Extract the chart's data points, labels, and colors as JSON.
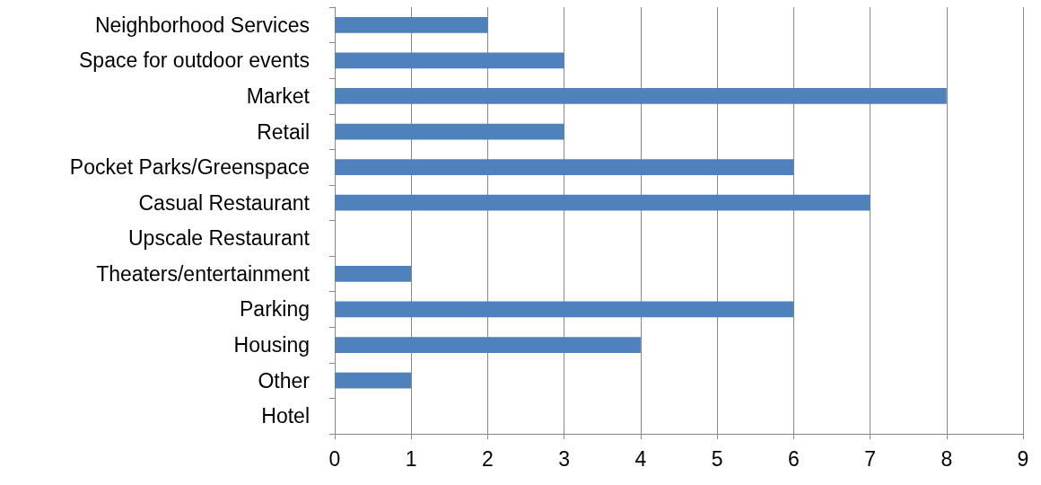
{
  "chart_data": {
    "type": "bar",
    "orientation": "horizontal",
    "categories": [
      "Neighborhood Services",
      "Space for outdoor events",
      "Market",
      "Retail",
      "Pocket Parks/Greenspace",
      "Casual Restaurant",
      "Upscale Restaurant",
      "Theaters/entertainment",
      "Parking",
      "Housing",
      "Other",
      "Hotel"
    ],
    "values": [
      2,
      3,
      8,
      3,
      6,
      7,
      0,
      1,
      6,
      4,
      1,
      0
    ],
    "color": "#4f81bd",
    "xlim": [
      0,
      9
    ],
    "xticks": [
      0,
      1,
      2,
      3,
      4,
      5,
      6,
      7,
      8,
      9
    ],
    "grid": "x"
  }
}
